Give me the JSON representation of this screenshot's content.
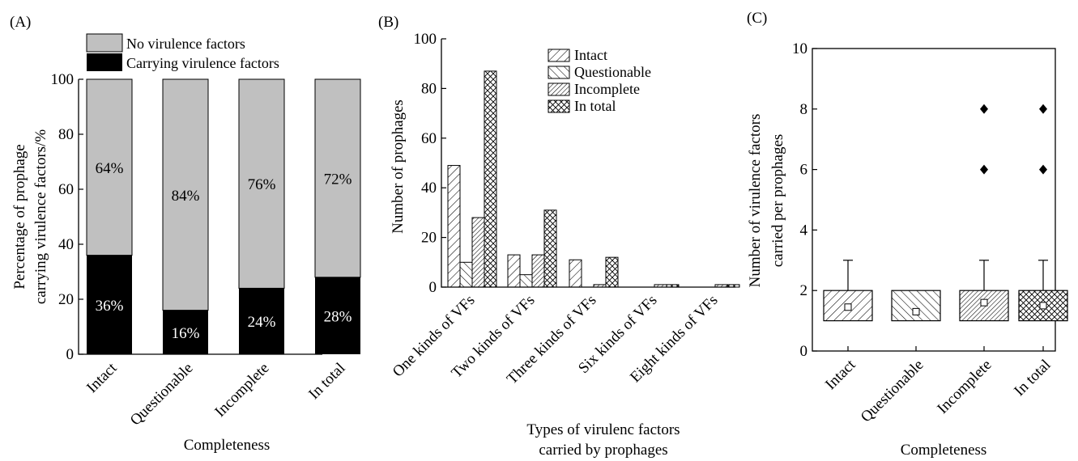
{
  "chart_data": [
    {
      "panel": "(A)",
      "type": "bar",
      "stacked": true,
      "categories": [
        "Intact",
        "Questionable",
        "Incomplete",
        "In total"
      ],
      "series": [
        {
          "name": "Carrying virulence factors",
          "values": [
            36,
            16,
            24,
            28
          ],
          "labels": [
            "36%",
            "16%",
            "24%",
            "28%"
          ],
          "color": "#000000"
        },
        {
          "name": "No virulence factors",
          "values": [
            64,
            84,
            76,
            72
          ],
          "labels": [
            "64%",
            "84%",
            "76%",
            "72%"
          ],
          "color": "#c0c0c0"
        }
      ],
      "ylabel": [
        "Percentage of prophage",
        "carrying virulence factors/%"
      ],
      "xlabel": "Completeness",
      "yticks": [
        "0",
        "20",
        "40",
        "60",
        "80",
        "100"
      ],
      "ylim": [
        0,
        100
      ],
      "legend": "top"
    },
    {
      "panel": "(B)",
      "type": "bar",
      "categories": [
        "One kinds of VFs",
        "Two kinds of VFs",
        "Three kinds of VFs",
        "Six kinds of VFs",
        "Eight kinds of VFs"
      ],
      "series": [
        {
          "name": "Intact",
          "values": [
            49,
            13,
            11,
            0,
            0
          ]
        },
        {
          "name": "Questionable",
          "values": [
            10,
            5,
            0,
            0,
            0
          ]
        },
        {
          "name": "Incomplete",
          "values": [
            28,
            13,
            1,
            1,
            1
          ]
        },
        {
          "name": "In total",
          "values": [
            87,
            31,
            12,
            1,
            1
          ]
        }
      ],
      "ylabel": "Number of prophages",
      "xlabel": [
        "Types of virulenc factors",
        "carried by prophages"
      ],
      "yticks": [
        "0",
        "20",
        "40",
        "60",
        "80",
        "100"
      ],
      "ylim": [
        0,
        100
      ],
      "legend": "top-right"
    },
    {
      "panel": "(C)",
      "type": "box",
      "categories": [
        "Intact",
        "Questionable",
        "Incomplete",
        "In total"
      ],
      "boxes": [
        {
          "q1": 1,
          "q3": 2,
          "whisker_high": 3,
          "mean": 1.45,
          "outliers": []
        },
        {
          "q1": 1,
          "q3": 2,
          "whisker_high": null,
          "mean": 1.3,
          "outliers": []
        },
        {
          "q1": 1,
          "q3": 2,
          "whisker_high": 3,
          "mean": 1.6,
          "outliers": [
            6,
            8
          ]
        },
        {
          "q1": 1,
          "q3": 2,
          "whisker_high": 3,
          "mean": 1.5,
          "outliers": [
            6,
            8
          ]
        }
      ],
      "ylabel": [
        "Number of virulence factors",
        "carried per prophages"
      ],
      "xlabel": "Completeness",
      "yticks": [
        "0",
        "2",
        "4",
        "6",
        "8",
        "10"
      ],
      "ylim": [
        0,
        10
      ]
    }
  ]
}
